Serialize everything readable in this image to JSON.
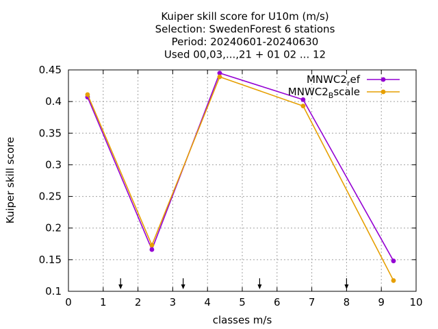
{
  "chart_data": {
    "type": "line",
    "title_lines": [
      "Kuiper skill score  for U10m (m/s)",
      "Selection: SwedenForest      6 stations",
      "Period: 20240601-20240630",
      "Used 00,03,...,21 + 01 02 ... 12"
    ],
    "xlabel": "classes m/s",
    "ylabel": "Kuiper skill score",
    "xlim": [
      0,
      10
    ],
    "ylim": [
      0.1,
      0.45
    ],
    "xticks": [
      "0",
      "1",
      "2",
      "3",
      "4",
      "5",
      "6",
      "7",
      "8",
      "9",
      "10"
    ],
    "yticks": [
      "0.1",
      "0.15",
      "0.2",
      "0.25",
      "0.3",
      "0.35",
      "0.4",
      "0.45"
    ],
    "grid": true,
    "legend_position": "top-right",
    "class_markers_x": [
      1.5,
      3.3,
      5.5,
      8.0
    ],
    "series": [
      {
        "name_main": "MNWC2",
        "name_sub": "r",
        "name_tail": "ef",
        "color": "#9400d3",
        "x": [
          0.55,
          2.4,
          4.35,
          6.75,
          9.35
        ],
        "y": [
          0.407,
          0.166,
          0.445,
          0.403,
          0.148
        ]
      },
      {
        "name_main": "MNWC2",
        "name_sub": "B",
        "name_tail": "scale",
        "color": "#e69f00",
        "x": [
          0.55,
          2.4,
          4.35,
          6.75,
          9.35
        ],
        "y": [
          0.411,
          0.173,
          0.439,
          0.393,
          0.117
        ]
      }
    ]
  }
}
